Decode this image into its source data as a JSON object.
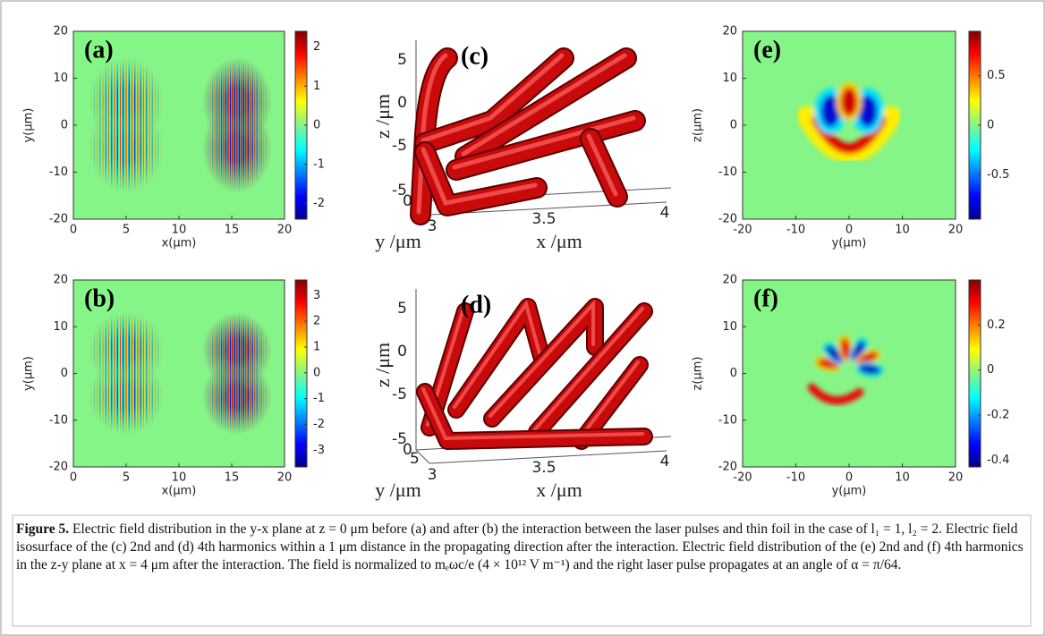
{
  "figure": {
    "heatmaps": [
      {
        "label": "(a)",
        "xlabel": "x(μm)",
        "ylabel": "y(μm)",
        "xlim": [
          0,
          20
        ],
        "ylim": [
          -20,
          20
        ],
        "xticks": [
          0,
          5,
          10,
          15,
          20
        ],
        "yticks": [
          -20,
          -10,
          0,
          10,
          20
        ],
        "clim": [
          -2.4,
          2.4
        ],
        "cticks": [
          -2,
          -1,
          0,
          1,
          2
        ]
      },
      {
        "label": "(b)",
        "xlabel": "x(μm)",
        "ylabel": "y(μm)",
        "xlim": [
          0,
          20
        ],
        "ylim": [
          -20,
          20
        ],
        "xticks": [
          0,
          5,
          10,
          15,
          20
        ],
        "yticks": [
          -20,
          -10,
          0,
          10,
          20
        ],
        "clim": [
          -3.65,
          3.6
        ],
        "cticks": [
          -3,
          -2,
          -1,
          0,
          1,
          2,
          3
        ]
      },
      {
        "label": "(e)",
        "xlabel": "y(μm)",
        "ylabel": "z(μm)",
        "xlim": [
          -20,
          20
        ],
        "ylim": [
          -20,
          20
        ],
        "xticks": [
          -20,
          -10,
          0,
          10,
          20
        ],
        "yticks": [
          -20,
          -10,
          0,
          10,
          20
        ],
        "clim": [
          -0.95,
          0.95
        ],
        "cticks": [
          -0.5,
          0,
          0.5
        ]
      },
      {
        "label": "(f)",
        "xlabel": "y(μm)",
        "ylabel": "z(μm)",
        "xlim": [
          -20,
          20
        ],
        "ylim": [
          -20,
          20
        ],
        "xticks": [
          -20,
          -10,
          0,
          10,
          20
        ],
        "yticks": [
          -20,
          -10,
          0,
          10,
          20
        ],
        "clim": [
          -0.43,
          0.4
        ],
        "cticks": [
          -0.4,
          -0.2,
          0,
          0.2
        ]
      }
    ],
    "isosurfaces": [
      {
        "label": "(c)",
        "xlabel": "x /μm",
        "ylabel": "y /μm",
        "zlabel": "z /μm",
        "xticks": [
          3,
          3.5,
          4
        ],
        "yticks": [
          -5,
          0,
          5
        ],
        "zticks": [
          -5,
          0,
          5
        ]
      },
      {
        "label": "(d)",
        "xlabel": "x /μm",
        "ylabel": "y /μm",
        "zlabel": "z /μm",
        "xticks": [
          3,
          3.5,
          4
        ],
        "yticks": [
          -5,
          0,
          5
        ],
        "zticks": [
          -5,
          0,
          5
        ]
      }
    ],
    "caption": {
      "label": "Figure 5.",
      "text": "Electric field distribution in the y-x plane at z = 0 μm before (a) and after (b) the interaction between the laser pulses and thin foil in the case of l₁ = 1, l₂ = 2. Electric field isosurface of the (c) 2nd and (d) 4th harmonics within a 1 μm distance in the propagating direction after the interaction. Electric field distribution of the (e) 2nd and (f) 4th harmonics in the z-y plane at x = 4 μm after the interaction. The field is normalized to mₑωc/e (4 × 10¹² V m⁻¹) and the right laser pulse propagates at an angle of α = π/64."
    }
  }
}
